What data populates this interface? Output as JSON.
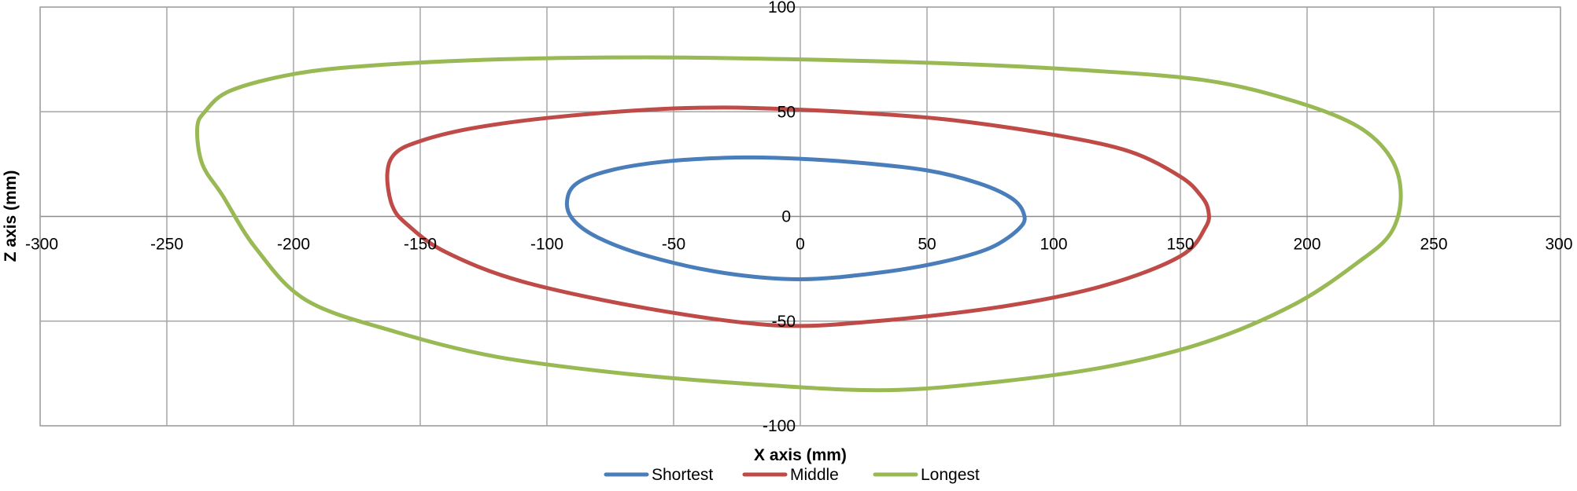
{
  "chart_data": {
    "type": "scatter",
    "title": "",
    "xlabel": "X axis (mm)",
    "ylabel": "Z axis (mm)",
    "xlim": [
      -300,
      300
    ],
    "ylim": [
      -100,
      100
    ],
    "x_ticks": [
      -300,
      -250,
      -200,
      -150,
      -100,
      -50,
      0,
      50,
      100,
      150,
      200,
      250,
      300
    ],
    "y_ticks": [
      -100,
      -50,
      0,
      50,
      100
    ],
    "grid": true,
    "legend": "bottom-center",
    "series": [
      {
        "name": "Shortest",
        "color": "#4a7ebb",
        "points": [
          [
            -92,
            8
          ],
          [
            -88,
            16
          ],
          [
            -75,
            22
          ],
          [
            -55,
            26
          ],
          [
            -30,
            28
          ],
          [
            -10,
            28
          ],
          [
            20,
            26
          ],
          [
            50,
            22
          ],
          [
            70,
            16
          ],
          [
            83,
            9
          ],
          [
            88,
            2
          ],
          [
            87,
            -5
          ],
          [
            75,
            -15
          ],
          [
            55,
            -22
          ],
          [
            30,
            -27
          ],
          [
            0,
            -30
          ],
          [
            -30,
            -27
          ],
          [
            -60,
            -19
          ],
          [
            -80,
            -10
          ],
          [
            -90,
            -1
          ],
          [
            -92,
            8
          ]
        ]
      },
      {
        "name": "Middle",
        "color": "#be4b48",
        "points": [
          [
            -163,
            20
          ],
          [
            -160,
            30
          ],
          [
            -150,
            36
          ],
          [
            -130,
            42
          ],
          [
            -100,
            47
          ],
          [
            -60,
            51
          ],
          [
            -30,
            52
          ],
          [
            0,
            51
          ],
          [
            30,
            49
          ],
          [
            60,
            46
          ],
          [
            100,
            39
          ],
          [
            130,
            31
          ],
          [
            150,
            19
          ],
          [
            158,
            10
          ],
          [
            161,
            3
          ],
          [
            160,
            -5
          ],
          [
            150,
            -19
          ],
          [
            120,
            -33
          ],
          [
            80,
            -43
          ],
          [
            30,
            -50
          ],
          [
            -10,
            -52
          ],
          [
            -60,
            -44
          ],
          [
            -110,
            -31
          ],
          [
            -140,
            -17
          ],
          [
            -155,
            -4
          ],
          [
            -161,
            5
          ],
          [
            -163,
            20
          ]
        ]
      },
      {
        "name": "Longest",
        "color": "#98b954",
        "points": [
          [
            -238,
            42
          ],
          [
            -235,
            50
          ],
          [
            -225,
            60
          ],
          [
            -200,
            68
          ],
          [
            -170,
            72
          ],
          [
            -120,
            75
          ],
          [
            -60,
            76
          ],
          [
            0,
            75
          ],
          [
            60,
            73
          ],
          [
            110,
            70
          ],
          [
            160,
            65
          ],
          [
            195,
            55
          ],
          [
            220,
            43
          ],
          [
            233,
            28
          ],
          [
            237,
            10
          ],
          [
            233,
            -8
          ],
          [
            220,
            -22
          ],
          [
            195,
            -42
          ],
          [
            160,
            -60
          ],
          [
            120,
            -72
          ],
          [
            70,
            -80
          ],
          [
            30,
            -83
          ],
          [
            -20,
            -80
          ],
          [
            -70,
            -75
          ],
          [
            -120,
            -67
          ],
          [
            -160,
            -55
          ],
          [
            -195,
            -40
          ],
          [
            -215,
            -15
          ],
          [
            -228,
            10
          ],
          [
            -236,
            25
          ],
          [
            -238,
            42
          ]
        ]
      }
    ]
  }
}
